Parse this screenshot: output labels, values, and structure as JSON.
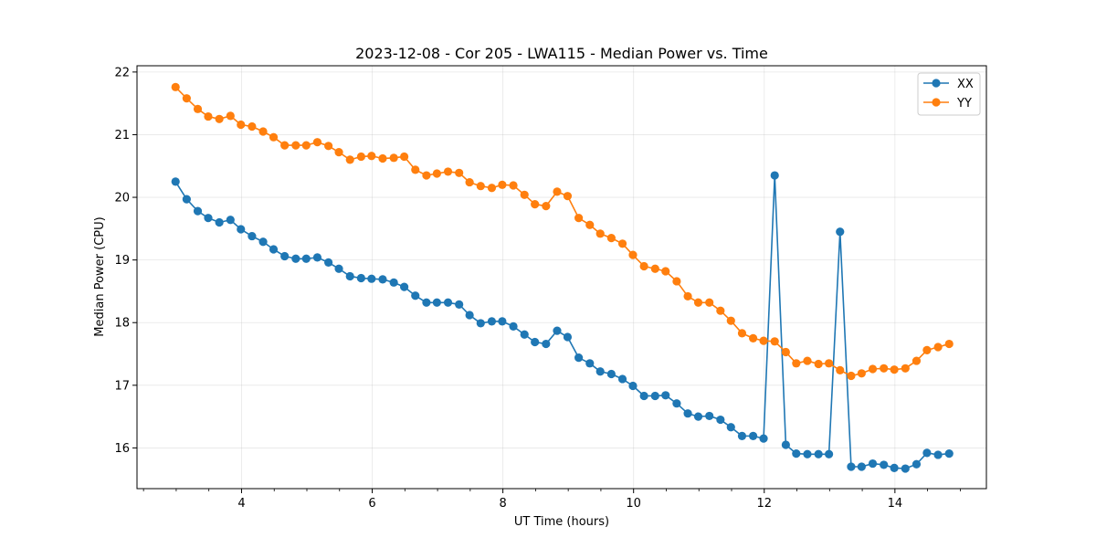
{
  "chart_data": {
    "type": "line",
    "title": "2023-12-08 - Cor 205 - LWA115 - Median Power vs. Time",
    "xlabel": "UT Time (hours)",
    "ylabel": "Median Power (CPU)",
    "xlim": [
      2.4,
      15.4
    ],
    "ylim": [
      15.35,
      22.1
    ],
    "xticks": [
      4,
      6,
      8,
      10,
      12,
      14
    ],
    "yticks": [
      16,
      17,
      18,
      19,
      20,
      21,
      22
    ],
    "grid": true,
    "legend_position": "top-right",
    "x": [
      2.99,
      3.16,
      3.33,
      3.49,
      3.66,
      3.83,
      3.99,
      4.16,
      4.33,
      4.49,
      4.66,
      4.83,
      4.99,
      5.16,
      5.33,
      5.49,
      5.66,
      5.83,
      5.99,
      6.16,
      6.33,
      6.49,
      6.66,
      6.83,
      6.99,
      7.16,
      7.33,
      7.49,
      7.66,
      7.83,
      7.99,
      8.16,
      8.33,
      8.49,
      8.66,
      8.83,
      8.99,
      9.16,
      9.33,
      9.49,
      9.66,
      9.83,
      9.99,
      10.16,
      10.33,
      10.49,
      10.66,
      10.83,
      10.99,
      11.16,
      11.33,
      11.49,
      11.66,
      11.83,
      11.99,
      12.16,
      12.33,
      12.49,
      12.66,
      12.83,
      12.99,
      13.16,
      13.33,
      13.49,
      13.66,
      13.83,
      13.99,
      14.16,
      14.33,
      14.49,
      14.66,
      14.83
    ],
    "series": [
      {
        "name": "XX",
        "color": "#1f77b4",
        "values": [
          20.25,
          19.97,
          19.78,
          19.67,
          19.6,
          19.64,
          19.49,
          19.38,
          19.29,
          19.17,
          19.06,
          19.02,
          19.02,
          19.04,
          18.96,
          18.86,
          18.74,
          18.71,
          18.7,
          18.69,
          18.64,
          18.57,
          18.43,
          18.32,
          18.32,
          18.32,
          18.29,
          18.12,
          17.99,
          18.02,
          18.02,
          17.94,
          17.81,
          17.69,
          17.66,
          17.87,
          17.77,
          17.44,
          17.35,
          17.22,
          17.18,
          17.1,
          16.99,
          16.83,
          16.83,
          16.84,
          16.71,
          16.55,
          16.5,
          16.51,
          16.45,
          16.33,
          16.19,
          16.19,
          16.15,
          20.35,
          16.05,
          15.91,
          15.9,
          15.9,
          15.9,
          19.45,
          15.7,
          15.7,
          15.75,
          15.73,
          15.68,
          15.67,
          15.74,
          15.92,
          15.89,
          15.91
        ]
      },
      {
        "name": "YY",
        "color": "#ff7f0e",
        "values": [
          21.76,
          21.58,
          21.41,
          21.29,
          21.25,
          21.3,
          21.16,
          21.13,
          21.05,
          20.96,
          20.83,
          20.83,
          20.83,
          20.88,
          20.82,
          20.72,
          20.6,
          20.65,
          20.66,
          20.62,
          20.63,
          20.65,
          20.44,
          20.35,
          20.38,
          20.41,
          20.39,
          20.24,
          20.18,
          20.15,
          20.2,
          20.19,
          20.04,
          19.89,
          19.86,
          20.09,
          20.02,
          19.67,
          19.56,
          19.42,
          19.35,
          19.26,
          19.08,
          18.9,
          18.86,
          18.82,
          18.66,
          18.42,
          18.32,
          18.32,
          18.19,
          18.03,
          17.83,
          17.75,
          17.71,
          17.7,
          17.53,
          17.35,
          17.39,
          17.34,
          17.35,
          17.24,
          17.15,
          17.19,
          17.26,
          17.27,
          17.25,
          17.27,
          17.39,
          17.56,
          17.61,
          17.66
        ]
      }
    ]
  }
}
